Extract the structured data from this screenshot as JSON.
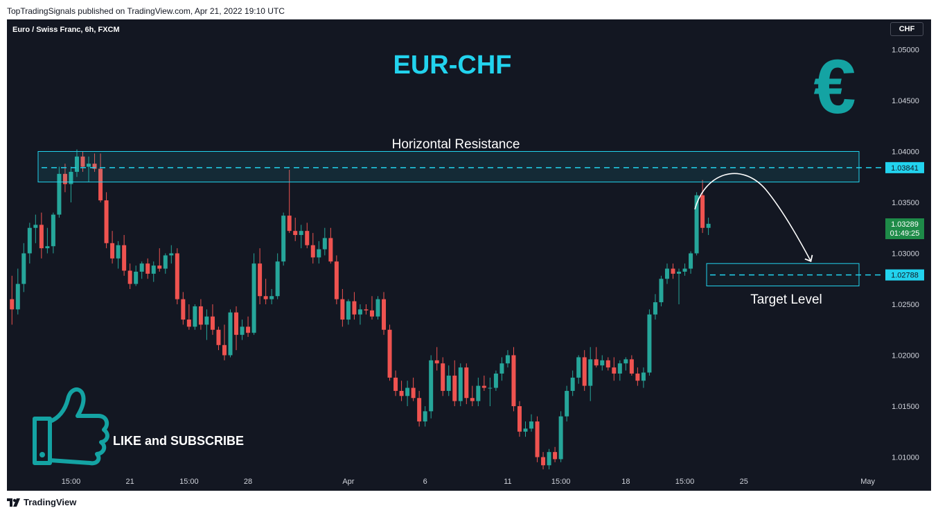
{
  "header": {
    "published": "TopTradingSignals published on TradingView.com, Apr 21, 2022 19:10 UTC",
    "symbol": "Euro / Swiss Franc, 6h, FXCM",
    "currency_button": "CHF"
  },
  "footer": {
    "brand": "TradingView"
  },
  "annotations": {
    "title": "EUR-CHF",
    "resistance_label": "Horizontal Resistance",
    "target_label": "Target Level",
    "like_label": "LIKE and SUBSCRIBE",
    "euro_symbol": "€"
  },
  "price_tags": {
    "resistance": "1.03841",
    "target": "1.02788",
    "last_price": "1.03289",
    "countdown": "01:49:25"
  },
  "colors": {
    "background": "#131722",
    "up": "#26a69a",
    "down": "#ef5350",
    "accent": "#22d3ee",
    "last_price_tag": "#1e8b48"
  },
  "chart_data": {
    "type": "candlestick",
    "interval": "6h",
    "y_ticks": [
      1.05,
      1.045,
      1.04,
      1.035,
      1.03,
      1.025,
      1.02,
      1.015,
      1.01
    ],
    "y_tick_labels": [
      "1.05000",
      "1.04500",
      "1.04000",
      "1.03500",
      "1.03000",
      "1.02500",
      "1.02000",
      "1.01500",
      "1.01000"
    ],
    "ylim": [
      1.0075,
      1.0525
    ],
    "x_ticks": [
      {
        "label": "15:00",
        "bar": 10
      },
      {
        "label": "21",
        "bar": 20
      },
      {
        "label": "15:00",
        "bar": 30
      },
      {
        "label": "28",
        "bar": 40
      },
      {
        "label": "Apr",
        "bar": 57
      },
      {
        "label": "6",
        "bar": 70
      },
      {
        "label": "11",
        "bar": 84
      },
      {
        "label": "15:00",
        "bar": 93
      },
      {
        "label": "18",
        "bar": 104
      },
      {
        "label": "15:00",
        "bar": 114
      },
      {
        "label": "25",
        "bar": 124
      },
      {
        "label": "May",
        "bar": 145
      }
    ],
    "total_bar_slots": 148,
    "resistance_zone": [
      1.037,
      1.04
    ],
    "resistance_level": 1.03841,
    "target_zone": [
      1.0268,
      1.029
    ],
    "target_level": 1.02788,
    "last_price": 1.03289,
    "candles": [
      {
        "o": 1.0255,
        "h": 1.0278,
        "l": 1.023,
        "c": 1.0245
      },
      {
        "o": 1.0245,
        "h": 1.0285,
        "l": 1.024,
        "c": 1.027
      },
      {
        "o": 1.027,
        "h": 1.031,
        "l": 1.0262,
        "c": 1.03
      },
      {
        "o": 1.03,
        "h": 1.033,
        "l": 1.029,
        "c": 1.0325
      },
      {
        "o": 1.0325,
        "h": 1.0338,
        "l": 1.031,
        "c": 1.0328
      },
      {
        "o": 1.0328,
        "h": 1.034,
        "l": 1.0295,
        "c": 1.0305
      },
      {
        "o": 1.0305,
        "h": 1.0325,
        "l": 1.03,
        "c": 1.0307
      },
      {
        "o": 1.0307,
        "h": 1.034,
        "l": 1.03,
        "c": 1.0338
      },
      {
        "o": 1.0338,
        "h": 1.0385,
        "l": 1.0335,
        "c": 1.0378
      },
      {
        "o": 1.0378,
        "h": 1.0388,
        "l": 1.036,
        "c": 1.0368
      },
      {
        "o": 1.0368,
        "h": 1.0385,
        "l": 1.035,
        "c": 1.038
      },
      {
        "o": 1.038,
        "h": 1.0402,
        "l": 1.0375,
        "c": 1.0395
      },
      {
        "o": 1.0395,
        "h": 1.04,
        "l": 1.038,
        "c": 1.0385
      },
      {
        "o": 1.0385,
        "h": 1.0395,
        "l": 1.037,
        "c": 1.0388
      },
      {
        "o": 1.0388,
        "h": 1.0398,
        "l": 1.038,
        "c": 1.0383
      },
      {
        "o": 1.0383,
        "h": 1.0398,
        "l": 1.035,
        "c": 1.0352
      },
      {
        "o": 1.0352,
        "h": 1.036,
        "l": 1.0305,
        "c": 1.031
      },
      {
        "o": 1.031,
        "h": 1.0322,
        "l": 1.029,
        "c": 1.0295
      },
      {
        "o": 1.0295,
        "h": 1.0312,
        "l": 1.0285,
        "c": 1.0308
      },
      {
        "o": 1.0308,
        "h": 1.0318,
        "l": 1.0278,
        "c": 1.0283
      },
      {
        "o": 1.0283,
        "h": 1.029,
        "l": 1.0265,
        "c": 1.027
      },
      {
        "o": 1.027,
        "h": 1.0288,
        "l": 1.0268,
        "c": 1.0282
      },
      {
        "o": 1.0282,
        "h": 1.0292,
        "l": 1.0275,
        "c": 1.029
      },
      {
        "o": 1.029,
        "h": 1.0295,
        "l": 1.0275,
        "c": 1.028
      },
      {
        "o": 1.028,
        "h": 1.0292,
        "l": 1.0272,
        "c": 1.0288
      },
      {
        "o": 1.0288,
        "h": 1.0305,
        "l": 1.0282,
        "c": 1.0285
      },
      {
        "o": 1.0285,
        "h": 1.03,
        "l": 1.028,
        "c": 1.0298
      },
      {
        "o": 1.0298,
        "h": 1.0308,
        "l": 1.029,
        "c": 1.03
      },
      {
        "o": 1.03,
        "h": 1.0305,
        "l": 1.025,
        "c": 1.0255
      },
      {
        "o": 1.0255,
        "h": 1.0262,
        "l": 1.023,
        "c": 1.0235
      },
      {
        "o": 1.0235,
        "h": 1.025,
        "l": 1.0225,
        "c": 1.0228
      },
      {
        "o": 1.0228,
        "h": 1.025,
        "l": 1.0225,
        "c": 1.0248
      },
      {
        "o": 1.0248,
        "h": 1.0255,
        "l": 1.0225,
        "c": 1.023
      },
      {
        "o": 1.023,
        "h": 1.0245,
        "l": 1.0215,
        "c": 1.0238
      },
      {
        "o": 1.0238,
        "h": 1.025,
        "l": 1.022,
        "c": 1.0225
      },
      {
        "o": 1.0225,
        "h": 1.0228,
        "l": 1.0205,
        "c": 1.021
      },
      {
        "o": 1.021,
        "h": 1.023,
        "l": 1.0195,
        "c": 1.02
      },
      {
        "o": 1.02,
        "h": 1.0245,
        "l": 1.0198,
        "c": 1.0242
      },
      {
        "o": 1.0242,
        "h": 1.0248,
        "l": 1.0205,
        "c": 1.022
      },
      {
        "o": 1.022,
        "h": 1.0235,
        "l": 1.0215,
        "c": 1.0228
      },
      {
        "o": 1.0228,
        "h": 1.0238,
        "l": 1.0218,
        "c": 1.0222
      },
      {
        "o": 1.0222,
        "h": 1.03,
        "l": 1.022,
        "c": 1.029
      },
      {
        "o": 1.029,
        "h": 1.0305,
        "l": 1.025,
        "c": 1.0258
      },
      {
        "o": 1.0258,
        "h": 1.0275,
        "l": 1.025,
        "c": 1.0255
      },
      {
        "o": 1.0255,
        "h": 1.0265,
        "l": 1.025,
        "c": 1.0258
      },
      {
        "o": 1.0258,
        "h": 1.03,
        "l": 1.0255,
        "c": 1.0292
      },
      {
        "o": 1.0292,
        "h": 1.034,
        "l": 1.0288,
        "c": 1.0337
      },
      {
        "o": 1.0337,
        "h": 1.0382,
        "l": 1.032,
        "c": 1.0322
      },
      {
        "o": 1.0322,
        "h": 1.0335,
        "l": 1.0312,
        "c": 1.0318
      },
      {
        "o": 1.0318,
        "h": 1.0328,
        "l": 1.0305,
        "c": 1.0322
      },
      {
        "o": 1.0322,
        "h": 1.033,
        "l": 1.0305,
        "c": 1.0308
      },
      {
        "o": 1.0308,
        "h": 1.032,
        "l": 1.029,
        "c": 1.0296
      },
      {
        "o": 1.0296,
        "h": 1.0312,
        "l": 1.029,
        "c": 1.0304
      },
      {
        "o": 1.0304,
        "h": 1.0325,
        "l": 1.0298,
        "c": 1.0315
      },
      {
        "o": 1.0315,
        "h": 1.0325,
        "l": 1.029,
        "c": 1.0292
      },
      {
        "o": 1.0292,
        "h": 1.0298,
        "l": 1.025,
        "c": 1.0255
      },
      {
        "o": 1.0255,
        "h": 1.0265,
        "l": 1.0228,
        "c": 1.0235
      },
      {
        "o": 1.0235,
        "h": 1.0255,
        "l": 1.023,
        "c": 1.0253
      },
      {
        "o": 1.0253,
        "h": 1.0262,
        "l": 1.0235,
        "c": 1.024
      },
      {
        "o": 1.024,
        "h": 1.025,
        "l": 1.023,
        "c": 1.0245
      },
      {
        "o": 1.0245,
        "h": 1.025,
        "l": 1.024,
        "c": 1.0244
      },
      {
        "o": 1.0244,
        "h": 1.0258,
        "l": 1.0235,
        "c": 1.0238
      },
      {
        "o": 1.0238,
        "h": 1.0258,
        "l": 1.0235,
        "c": 1.0255
      },
      {
        "o": 1.0255,
        "h": 1.0262,
        "l": 1.022,
        "c": 1.0225
      },
      {
        "o": 1.0225,
        "h": 1.023,
        "l": 1.0175,
        "c": 1.0178
      },
      {
        "o": 1.0178,
        "h": 1.0185,
        "l": 1.016,
        "c": 1.0165
      },
      {
        "o": 1.0165,
        "h": 1.0175,
        "l": 1.0155,
        "c": 1.016
      },
      {
        "o": 1.016,
        "h": 1.0175,
        "l": 1.015,
        "c": 1.0168
      },
      {
        "o": 1.0168,
        "h": 1.0178,
        "l": 1.0155,
        "c": 1.0158
      },
      {
        "o": 1.0158,
        "h": 1.0165,
        "l": 1.013,
        "c": 1.0135
      },
      {
        "o": 1.0135,
        "h": 1.015,
        "l": 1.013,
        "c": 1.0145
      },
      {
        "o": 1.0145,
        "h": 1.02,
        "l": 1.0138,
        "c": 1.0195
      },
      {
        "o": 1.0195,
        "h": 1.0208,
        "l": 1.0185,
        "c": 1.0192
      },
      {
        "o": 1.0192,
        "h": 1.0198,
        "l": 1.016,
        "c": 1.0165
      },
      {
        "o": 1.0165,
        "h": 1.019,
        "l": 1.016,
        "c": 1.018
      },
      {
        "o": 1.018,
        "h": 1.0195,
        "l": 1.015,
        "c": 1.0155
      },
      {
        "o": 1.0155,
        "h": 1.0192,
        "l": 1.015,
        "c": 1.0188
      },
      {
        "o": 1.0188,
        "h": 1.0192,
        "l": 1.0152,
        "c": 1.0158
      },
      {
        "o": 1.0158,
        "h": 1.017,
        "l": 1.015,
        "c": 1.0155
      },
      {
        "o": 1.0155,
        "h": 1.0178,
        "l": 1.015,
        "c": 1.017
      },
      {
        "o": 1.017,
        "h": 1.018,
        "l": 1.0165,
        "c": 1.0168
      },
      {
        "o": 1.0168,
        "h": 1.0178,
        "l": 1.015,
        "c": 1.0168
      },
      {
        "o": 1.0168,
        "h": 1.0185,
        "l": 1.0165,
        "c": 1.0182
      },
      {
        "o": 1.0182,
        "h": 1.0198,
        "l": 1.0175,
        "c": 1.0192
      },
      {
        "o": 1.0192,
        "h": 1.0205,
        "l": 1.0188,
        "c": 1.02
      },
      {
        "o": 1.02,
        "h": 1.0208,
        "l": 1.0145,
        "c": 1.015
      },
      {
        "o": 1.015,
        "h": 1.0155,
        "l": 1.012,
        "c": 1.0125
      },
      {
        "o": 1.0125,
        "h": 1.0135,
        "l": 1.012,
        "c": 1.0128
      },
      {
        "o": 1.0128,
        "h": 1.0142,
        "l": 1.0125,
        "c": 1.0135
      },
      {
        "o": 1.0135,
        "h": 1.014,
        "l": 1.0095,
        "c": 1.01
      },
      {
        "o": 1.01,
        "h": 1.0105,
        "l": 1.0088,
        "c": 1.0092
      },
      {
        "o": 1.0092,
        "h": 1.0108,
        "l": 1.0088,
        "c": 1.0105
      },
      {
        "o": 1.0105,
        "h": 1.011,
        "l": 1.0095,
        "c": 1.0098
      },
      {
        "o": 1.0098,
        "h": 1.0145,
        "l": 1.0095,
        "c": 1.014
      },
      {
        "o": 1.014,
        "h": 1.017,
        "l": 1.0135,
        "c": 1.0165
      },
      {
        "o": 1.0165,
        "h": 1.0185,
        "l": 1.016,
        "c": 1.0178
      },
      {
        "o": 1.0178,
        "h": 1.02,
        "l": 1.0172,
        "c": 1.0198
      },
      {
        "o": 1.0198,
        "h": 1.0205,
        "l": 1.0165,
        "c": 1.017
      },
      {
        "o": 1.017,
        "h": 1.0208,
        "l": 1.0155,
        "c": 1.0196
      },
      {
        "o": 1.0196,
        "h": 1.0208,
        "l": 1.0188,
        "c": 1.019
      },
      {
        "o": 1.019,
        "h": 1.02,
        "l": 1.0185,
        "c": 1.0195
      },
      {
        "o": 1.0195,
        "h": 1.0198,
        "l": 1.0185,
        "c": 1.0188
      },
      {
        "o": 1.0188,
        "h": 1.0198,
        "l": 1.0175,
        "c": 1.0182
      },
      {
        "o": 1.0182,
        "h": 1.0195,
        "l": 1.0175,
        "c": 1.0192
      },
      {
        "o": 1.0192,
        "h": 1.0198,
        "l": 1.0185,
        "c": 1.0196
      },
      {
        "o": 1.0196,
        "h": 1.02,
        "l": 1.018,
        "c": 1.0182
      },
      {
        "o": 1.0182,
        "h": 1.0188,
        "l": 1.017,
        "c": 1.0175
      },
      {
        "o": 1.0175,
        "h": 1.0188,
        "l": 1.0168,
        "c": 1.0183
      },
      {
        "o": 1.0183,
        "h": 1.0245,
        "l": 1.018,
        "c": 1.024
      },
      {
        "o": 1.024,
        "h": 1.026,
        "l": 1.0235,
        "c": 1.0252
      },
      {
        "o": 1.0252,
        "h": 1.0278,
        "l": 1.0248,
        "c": 1.0275
      },
      {
        "o": 1.0275,
        "h": 1.029,
        "l": 1.027,
        "c": 1.0285
      },
      {
        "o": 1.0285,
        "h": 1.029,
        "l": 1.0275,
        "c": 1.028
      },
      {
        "o": 1.028,
        "h": 1.0285,
        "l": 1.025,
        "c": 1.0282
      },
      {
        "o": 1.0282,
        "h": 1.029,
        "l": 1.0278,
        "c": 1.0285
      },
      {
        "o": 1.0285,
        "h": 1.0302,
        "l": 1.028,
        "c": 1.03
      },
      {
        "o": 1.03,
        "h": 1.036,
        "l": 1.0298,
        "c": 1.0357
      },
      {
        "o": 1.0357,
        "h": 1.0372,
        "l": 1.032,
        "c": 1.0325
      },
      {
        "o": 1.0325,
        "h": 1.0335,
        "l": 1.0318,
        "c": 1.0329
      }
    ]
  }
}
